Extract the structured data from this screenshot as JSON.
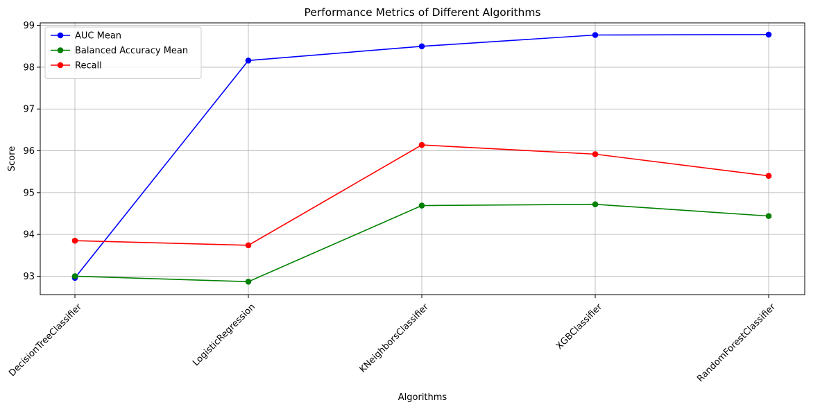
{
  "chart_data": {
    "type": "line",
    "title": "Performance Metrics of Different Algorithms",
    "xlabel": "Algorithms",
    "ylabel": "Score",
    "categories": [
      "DecisionTreeClassifier",
      "LogisticRegression",
      "KNeighborsClassifier",
      "XGBClassifier",
      "RandomForestClassifier"
    ],
    "ylim": [
      92.56,
      99.06
    ],
    "yticks": [
      93,
      94,
      95,
      96,
      97,
      98,
      99
    ],
    "grid": true,
    "legend_position": "top-left",
    "series": [
      {
        "name": "AUC Mean",
        "color": "#0000ff",
        "values": [
          92.96,
          98.16,
          98.5,
          98.77,
          98.78
        ]
      },
      {
        "name": "Balanced Accuracy Mean",
        "color": "#008000",
        "values": [
          93.0,
          92.87,
          94.69,
          94.72,
          94.44
        ]
      },
      {
        "name": "Recall",
        "color": "#ff0000",
        "values": [
          93.85,
          93.74,
          96.14,
          95.92,
          95.4
        ]
      }
    ]
  }
}
